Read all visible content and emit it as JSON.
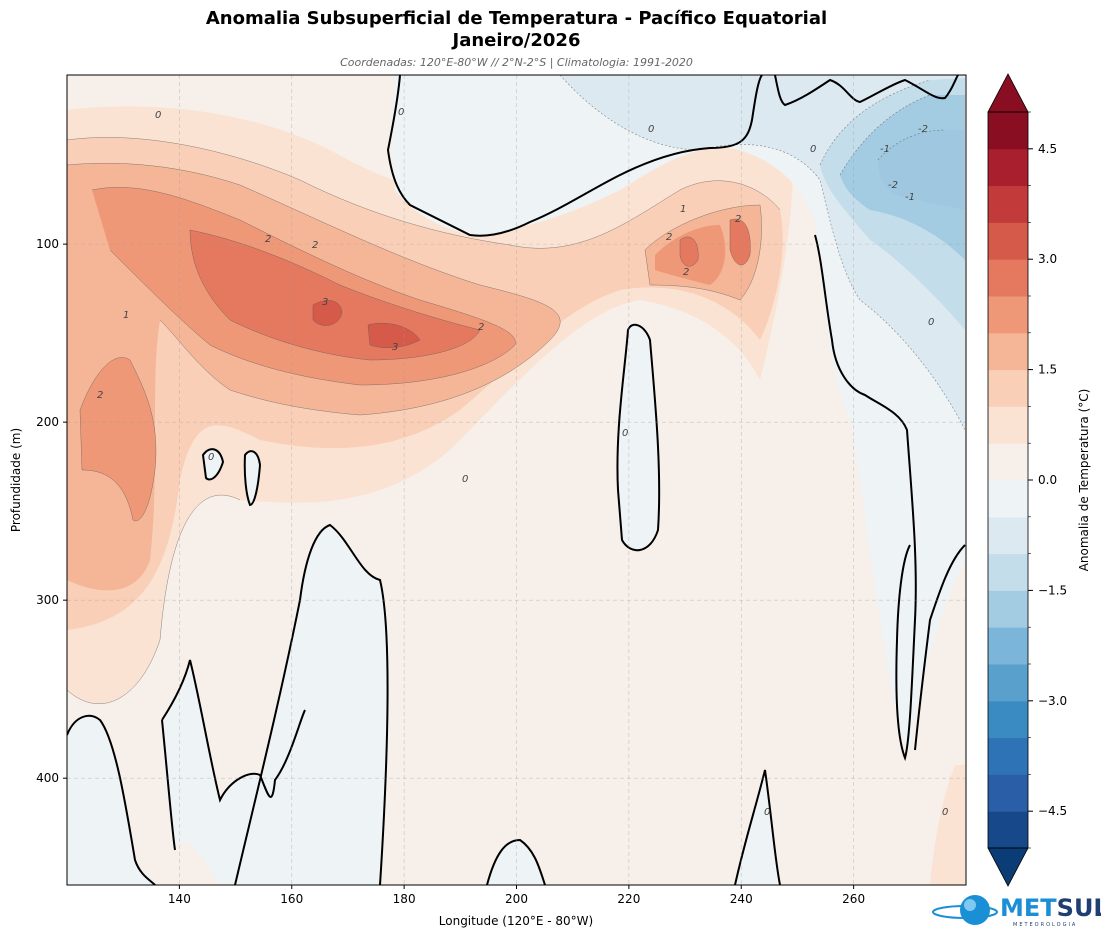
{
  "chart_data": {
    "type": "heatmap",
    "title_line1": "Anomalia Subsuperficial de Temperatura - Pacífico Equatorial",
    "title_line2": "Janeiro/2026",
    "subtitle": "Coordenadas: 120°E-80°W // 2°N-2°S | Climatologia: 1991-2020",
    "xlabel": "Longitude (120°E - 80°W)",
    "ylabel": "Profundidade (m)",
    "colorbar_label": "Anomalia de Temperatura (°C)",
    "xlim": [
      120,
      280
    ],
    "ylim": [
      460,
      5
    ],
    "y_inverted": true,
    "x_ticks": [
      "140",
      "160",
      "180",
      "200",
      "220",
      "240",
      "260"
    ],
    "y_ticks": [
      "100",
      "200",
      "300",
      "400"
    ],
    "colorbar_ticks": [
      "4.5",
      "3.0",
      "1.5",
      "0.0",
      "−1.5",
      "−3.0",
      "−4.5"
    ],
    "colorbar_range": [
      -5,
      5
    ],
    "colorbar_levels": [
      -5,
      -4.5,
      -4,
      -3.5,
      -3,
      -2.5,
      -2,
      -1.5,
      -1,
      -0.5,
      0,
      0.5,
      1,
      1.5,
      2,
      2.5,
      3,
      3.5,
      4,
      4.5,
      5
    ],
    "colorbar_colors": [
      "#0a3d75",
      "#17498a",
      "#2a5fa8",
      "#2d73b6",
      "#3a8bc1",
      "#5aa0cd",
      "#7bb5d9",
      "#a3cce3",
      "#c3ddeb",
      "#dde9f1",
      "#eef3f6",
      "#f7efe9",
      "#fbe3d4",
      "#f9cfb8",
      "#f5b597",
      "#ee9878",
      "#e47960",
      "#d65a4a",
      "#c23b3a",
      "#aa1f2d",
      "#8a0e22"
    ],
    "colorbar_extend": "both",
    "grid": true,
    "contour_labels": [
      "0",
      "1",
      "2",
      "3",
      "-1",
      "-2"
    ],
    "features": {
      "warm_core_max": 3.3,
      "warm_core_lon": [
        170,
        185
      ],
      "warm_core_depth": [
        130,
        160
      ],
      "cold_region_min": -2.2,
      "cold_region_lon": [
        265,
        280
      ],
      "cold_region_depth": [
        20,
        80
      ]
    }
  },
  "logo": {
    "met": "MET",
    "sul": "SUL",
    "sub": "METEOROLOGIA"
  }
}
